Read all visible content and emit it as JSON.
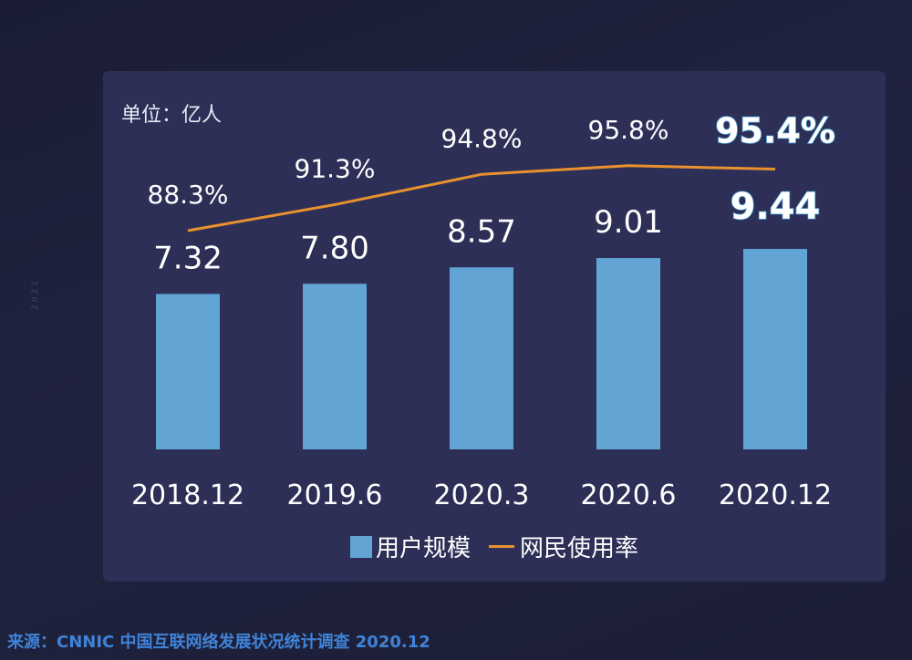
{
  "side_text": "2021",
  "unit_label": "单位：亿人",
  "source_label": "来源：",
  "source_text": "CNNIC 中国互联网络发展状况统计调查 2020.12",
  "colors": {
    "bar": "#62a5d4",
    "line": "#e8912e",
    "highlight": "#4aa3d8"
  },
  "chart_data": {
    "type": "bar",
    "categories": [
      "2018.12",
      "2019.6",
      "2020.3",
      "2020.6",
      "2020.12"
    ],
    "series": [
      {
        "name": "用户规模",
        "type": "bar",
        "values": [
          7.32,
          7.8,
          8.57,
          9.01,
          9.44
        ],
        "labels": [
          "7.32",
          "7.80",
          "8.57",
          "9.01",
          "9.44"
        ]
      },
      {
        "name": "网民使用率",
        "type": "line",
        "values": [
          88.3,
          91.3,
          94.8,
          95.8,
          95.4
        ],
        "labels": [
          "88.3%",
          "91.3%",
          "94.8%",
          "95.8%",
          "95.4%"
        ]
      }
    ],
    "highlight_index": 4
  },
  "legend": [
    {
      "label": "用户规模",
      "kind": "bar"
    },
    {
      "label": "网民使用率",
      "kind": "line"
    }
  ]
}
